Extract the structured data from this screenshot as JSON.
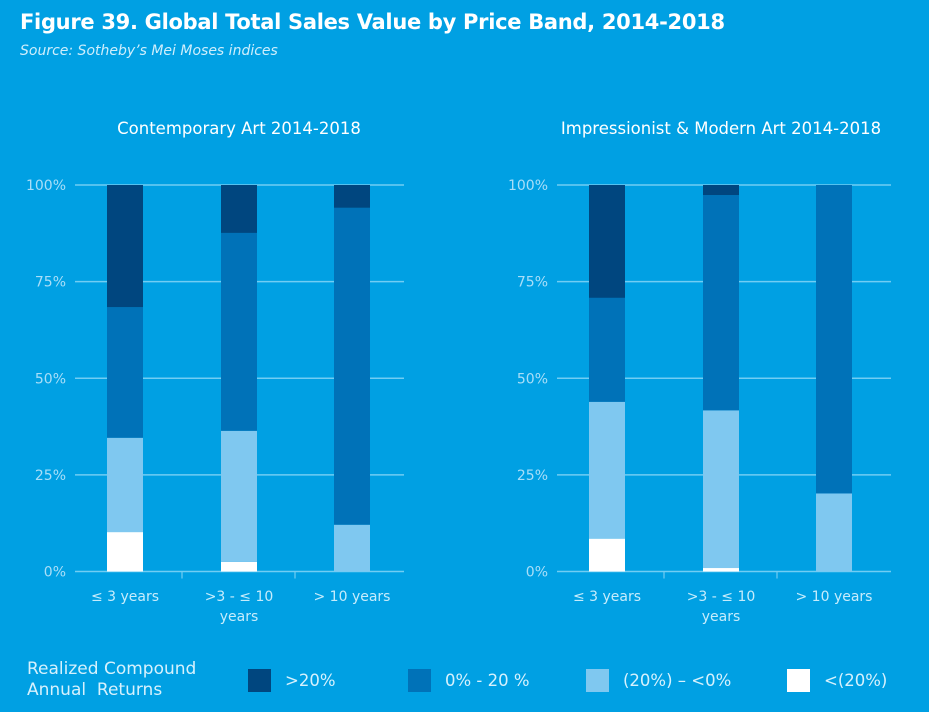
{
  "title": "Figure 39. Global Total Sales Value by Price Band, 2014-2018",
  "subtitle": "Source: Sotheby’s Mei Moses indices",
  "colors": {
    "background": "#00a0e3",
    "gt20": "#00467f",
    "0to20": "#0072b8",
    "neg20to0": "#7fc8f0",
    "ltneg20": "#ffffff"
  },
  "legend": {
    "title_line1": "Realized Compound",
    "title_line2": "Annual  Returns",
    "items": [
      {
        "key": "gt20",
        "label": ">20%"
      },
      {
        "key": "0to20",
        "label": "0% - 20 %"
      },
      {
        "key": "neg20to0",
        "label": "(20%) – <0%"
      },
      {
        "key": "ltneg20",
        "label": "<(20%)"
      }
    ]
  },
  "chart_data": [
    {
      "type": "bar",
      "stacked": true,
      "title": "Contemporary Art 2014-2018",
      "categories": [
        "≤ 3 years",
        ">3 - ≤ 10 years",
        "> 10 years"
      ],
      "category_lines": [
        [
          "≤ 3 years"
        ],
        [
          ">3 - ≤ 10",
          "years"
        ],
        [
          "> 10 years"
        ]
      ],
      "yticks": [
        "0%",
        "25%",
        "50%",
        "75%",
        "100%"
      ],
      "ylim": [
        0,
        100
      ],
      "grid": true,
      "series": [
        {
          "name": "<(20%)",
          "key": "ltneg20",
          "values": [
            10.2,
            2.5,
            0
          ]
        },
        {
          "name": "(20%) – <0%",
          "key": "neg20to0",
          "values": [
            24.4,
            33.9,
            12.1
          ]
        },
        {
          "name": "0% - 20 %",
          "key": "0to20",
          "values": [
            33.8,
            51.2,
            82.0
          ]
        },
        {
          "name": ">20%",
          "key": "gt20",
          "values": [
            31.6,
            12.4,
            5.9
          ]
        }
      ]
    },
    {
      "type": "bar",
      "stacked": true,
      "title": "Impressionist & Modern Art 2014-2018",
      "categories": [
        "≤ 3 years",
        ">3 - ≤ 10 years",
        "> 10 years"
      ],
      "category_lines": [
        [
          "≤ 3 years"
        ],
        [
          ">3 - ≤ 10",
          "years"
        ],
        [
          "> 10 years"
        ]
      ],
      "yticks": [
        "0%",
        "25%",
        "50%",
        "75%",
        "100%"
      ],
      "ylim": [
        0,
        100
      ],
      "grid": true,
      "series": [
        {
          "name": "<(20%)",
          "key": "ltneg20",
          "values": [
            8.5,
            0.9,
            0
          ]
        },
        {
          "name": "(20%) – <0%",
          "key": "neg20to0",
          "values": [
            35.4,
            40.8,
            20.2
          ]
        },
        {
          "name": "0% - 20 %",
          "key": "0to20",
          "values": [
            26.9,
            55.7,
            79.8
          ]
        },
        {
          "name": ">20%",
          "key": "gt20",
          "values": [
            29.2,
            2.6,
            0
          ]
        }
      ]
    }
  ]
}
